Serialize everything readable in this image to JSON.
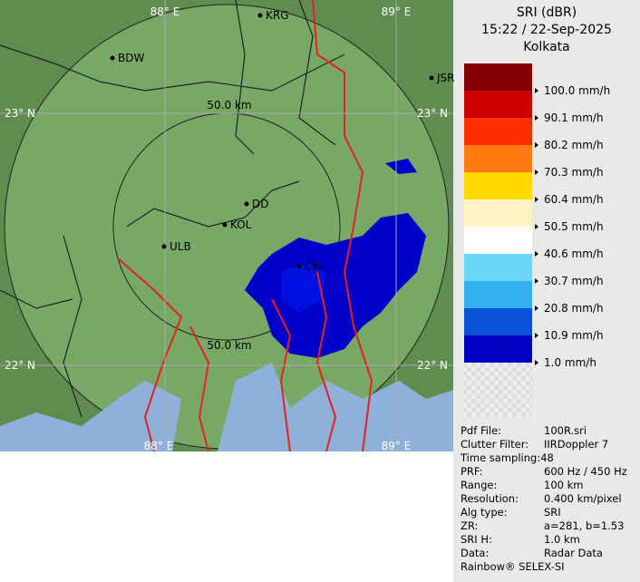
{
  "header": {
    "title": "SRI (dBR)",
    "time": "15:22 / 22-Sep-2025",
    "location": "Kolkata"
  },
  "legend": {
    "labels": [
      "100.0 mm/h",
      "90.1 mm/h",
      "80.2 mm/h",
      "70.3 mm/h",
      "60.4 mm/h",
      "50.5 mm/h",
      "40.6 mm/h",
      "30.7 mm/h",
      "20.8 mm/h",
      "10.9 mm/h",
      "1.0 mm/h"
    ]
  },
  "map": {
    "grid_labels": [
      "88° E",
      "89° E",
      "23° N",
      "23° N",
      "22° N",
      "22° N",
      "88° E",
      "89° E"
    ],
    "cities": [
      "KRG",
      "BDW",
      "JSR",
      "DD",
      "KOL",
      "ULB",
      "CNI"
    ],
    "range_labels": [
      "50.0 km",
      "50.0 km"
    ]
  },
  "info": {
    "rows": [
      [
        "Pdf File:",
        "100R.sri"
      ],
      [
        "Clutter Filter:",
        "IIRDoppler 7"
      ],
      [
        "Time sampling:48",
        ""
      ],
      [
        "PRF:",
        "600 Hz / 450 Hz"
      ],
      [
        "Range:",
        "100 km"
      ],
      [
        "Resolution:",
        "0.400 km/pixel"
      ],
      [
        "Alg type:",
        "SRI"
      ],
      [
        "ZR:",
        "a=281, b=1.53"
      ],
      [
        "SRI H:",
        "1.0 km"
      ],
      [
        "Data:",
        "Radar Data"
      ]
    ],
    "footer": "Rainbow® SELEX-SI"
  }
}
